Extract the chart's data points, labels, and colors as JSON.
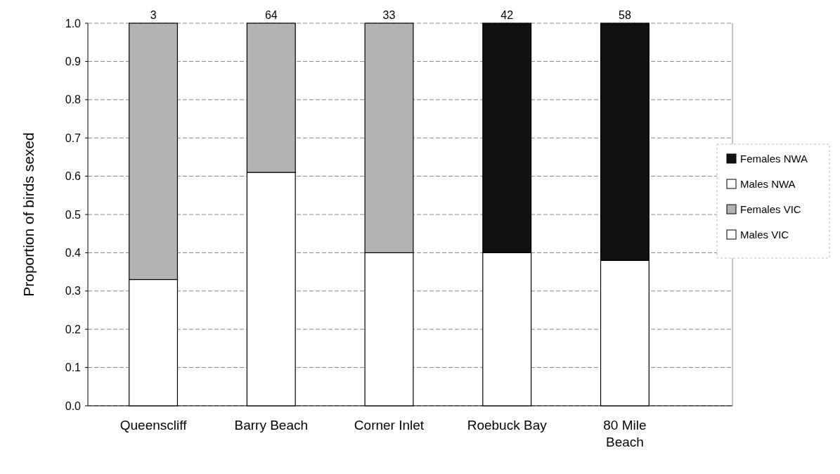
{
  "chart_data": {
    "type": "bar",
    "stacked": true,
    "ylabel": "Proportion of birds sexed",
    "categories": [
      "Queenscliff",
      "Barry Beach",
      "Corner Inlet",
      "Roebuck Bay",
      "80 Mile Beach"
    ],
    "series": [
      {
        "name": "Males VIC",
        "color": "#ffffff",
        "values": [
          0.33,
          0.61,
          0.4,
          null,
          null
        ]
      },
      {
        "name": "Females VIC",
        "color": "#b3b3b3",
        "values": [
          0.67,
          0.39,
          0.6,
          null,
          null
        ]
      },
      {
        "name": "Males NWA",
        "color": "#ffffff",
        "values": [
          null,
          null,
          null,
          0.4,
          0.38
        ]
      },
      {
        "name": "Females NWA",
        "color": "#111111",
        "values": [
          null,
          null,
          null,
          0.6,
          0.62
        ]
      }
    ],
    "annotations": [
      {
        "text": "3",
        "x": "Queenscliff",
        "y": 1
      },
      {
        "text": "64",
        "x": "Barry Beach",
        "y": 1
      },
      {
        "text": "33",
        "x": "Corner Inlet",
        "y": 1
      },
      {
        "text": "42",
        "x": "Roebuck Bay",
        "y": 1
      },
      {
        "text": "58",
        "x": "80 Mile Beach",
        "y": 1
      }
    ],
    "ylim": [
      0,
      1
    ],
    "yticks": [
      {
        "value": 0,
        "label": "0.0"
      },
      {
        "value": 0.1,
        "label": "0.1"
      },
      {
        "value": 0.2,
        "label": "0.2"
      },
      {
        "value": 0.3,
        "label": "0.3"
      },
      {
        "value": 0.4,
        "label": "0.4"
      },
      {
        "value": 0.5,
        "label": "0.5"
      },
      {
        "value": 0.6,
        "label": "0.6"
      },
      {
        "value": 0.7,
        "label": "0.7"
      },
      {
        "value": 0.8,
        "label": "0.8"
      },
      {
        "value": 0.9,
        "label": "0.9"
      },
      {
        "value": 1,
        "label": "1.0"
      }
    ],
    "grid": "y",
    "legend": "right"
  }
}
